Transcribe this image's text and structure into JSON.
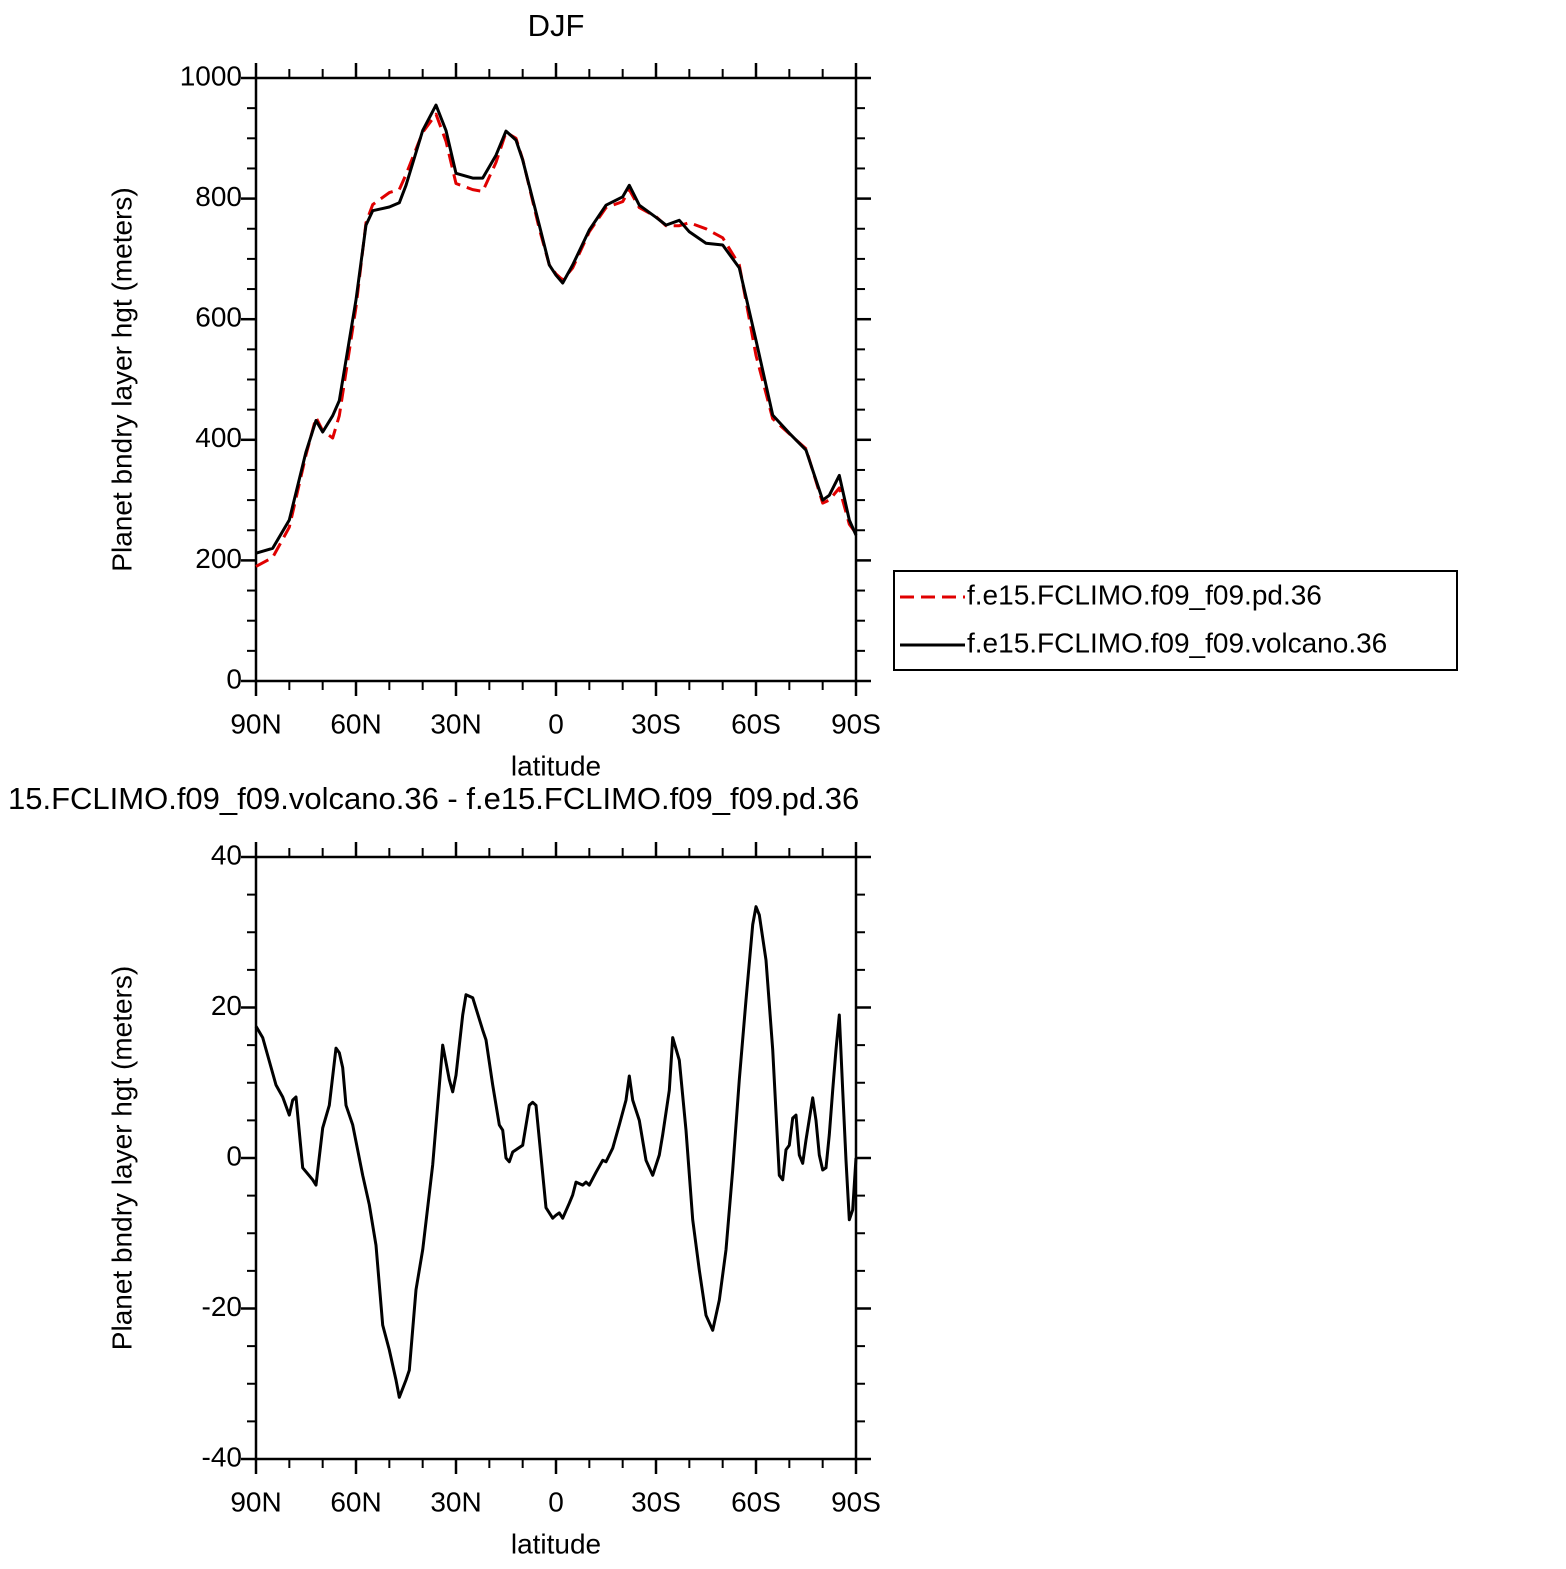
{
  "chart_data": [
    {
      "type": "line",
      "title": "DJF",
      "xlabel": "latitude",
      "ylabel": "Planet bndry layer hgt (meters)",
      "x": [
        90,
        85,
        80,
        75,
        72,
        70,
        67,
        65,
        60,
        57,
        55,
        50,
        47,
        45,
        40,
        36,
        33,
        30,
        25,
        22,
        18,
        15,
        12,
        10,
        5,
        2,
        0,
        -2,
        -5,
        -10,
        -15,
        -20,
        -22,
        -25,
        -30,
        -33,
        -37,
        -40,
        -45,
        -50,
        -55,
        -60,
        -65,
        -70,
        -75,
        -80,
        -82,
        -85,
        -88,
        -90
      ],
      "series": [
        {
          "name": "f.e15.FCLIMO.f09_f09.pd.36",
          "color": "#e00000",
          "dashed": true,
          "values": [
            190,
            205,
            255,
            375,
            437,
            415,
            403,
            440,
            620,
            760,
            790,
            810,
            815,
            840,
            910,
            940,
            895,
            825,
            815,
            812,
            860,
            910,
            900,
            865,
            750,
            690,
            675,
            665,
            685,
            745,
            785,
            795,
            815,
            785,
            770,
            755,
            755,
            760,
            750,
            735,
            690,
            540,
            435,
            410,
            385,
            295,
            300,
            320,
            260,
            245
          ]
        },
        {
          "name": "f.e15.FCLIMO.f09_f09.volcano.36",
          "color": "#000000",
          "dashed": false,
          "values": [
            212,
            220,
            267,
            380,
            432,
            413,
            440,
            465,
            632,
            756,
            780,
            786,
            793,
            822,
            913,
            955,
            913,
            842,
            834,
            834,
            872,
            912,
            897,
            864,
            756,
            690,
            673,
            660,
            690,
            748,
            789,
            803,
            822,
            789,
            769,
            756,
            764,
            745,
            726,
            723,
            685,
            565,
            441,
            411,
            383,
            300,
            308,
            341,
            267,
            242
          ]
        }
      ],
      "xlim": [
        90,
        -90
      ],
      "xticks": [
        {
          "value": 90,
          "label": "90N"
        },
        {
          "value": 60,
          "label": "60N"
        },
        {
          "value": 30,
          "label": "30N"
        },
        0,
        {
          "value": -30,
          "label": "30S"
        },
        {
          "value": -60,
          "label": "60S"
        },
        {
          "value": -90,
          "label": "90S"
        }
      ],
      "minor_xticks": [
        80,
        70,
        50,
        40,
        20,
        10,
        -10,
        -20,
        -40,
        -50,
        -70,
        -80
      ],
      "ylim": [
        0,
        1000
      ],
      "yticks": [
        0,
        200,
        400,
        600,
        800,
        1000
      ],
      "minor_yticks": [
        50,
        100,
        150,
        250,
        300,
        350,
        450,
        500,
        550,
        650,
        700,
        750,
        850,
        900,
        950
      ],
      "legend": "right"
    },
    {
      "type": "line",
      "title": "15.FCLIMO.f09_f09.volcano.36 - f.e15.FCLIMO.f09_f09.pd.36",
      "xlabel": "latitude",
      "ylabel": "Planet bndry layer hgt (meters)",
      "x": [
        90,
        88,
        84,
        82,
        80,
        79,
        78,
        76,
        73,
        72,
        70,
        68,
        66,
        65,
        64,
        63,
        61,
        58,
        56,
        54,
        52,
        50,
        48,
        47,
        45,
        44,
        42,
        40,
        37,
        34,
        32,
        31,
        30,
        28,
        27,
        25,
        22,
        21,
        19,
        17,
        16,
        15,
        14,
        13,
        10,
        8,
        7,
        6,
        3,
        1,
        0,
        -1,
        -2,
        -4,
        -5,
        -6,
        -8,
        -9,
        -10,
        -12,
        -14,
        -15,
        -17,
        -19,
        -21,
        -22,
        -23,
        -25,
        -27,
        -29,
        -31,
        -32,
        -34,
        -35,
        -37,
        -39,
        -41,
        -43,
        -45,
        -47,
        -49,
        -51,
        -53,
        -55,
        -57,
        -59,
        -60,
        -61,
        -63,
        -65,
        -67,
        -68,
        -69,
        -70,
        -71,
        -72,
        -73,
        -74,
        -75,
        -77,
        -78,
        -79,
        -80,
        -81,
        -82,
        -83,
        -84,
        -85,
        -86,
        -87,
        -88,
        -89,
        -90
      ],
      "series": [
        {
          "color": "#000000",
          "dashed": false,
          "values": [
            17.5,
            16,
            9.7,
            8.1,
            5.7,
            7.7,
            8.1,
            -1.3,
            -2.9,
            -3.6,
            4,
            7,
            14.6,
            14,
            12,
            7,
            4.4,
            -2.3,
            -6.2,
            -11.6,
            -22.2,
            -25.5,
            -29.5,
            -31.8,
            -29.5,
            -28.2,
            -17.5,
            -12.2,
            -0.9,
            15,
            10.4,
            8.8,
            11,
            19,
            21.7,
            21.3,
            17,
            15.7,
            9.7,
            4.4,
            3.7,
            0,
            -0.5,
            0.8,
            1.7,
            7,
            7.4,
            7,
            -6.6,
            -8,
            -7.6,
            -7.3,
            -8,
            -6,
            -4.9,
            -3.2,
            -3.6,
            -3.2,
            -3.6,
            -1.9,
            -0.3,
            -0.5,
            1.3,
            4.4,
            7.7,
            10.9,
            7.7,
            5,
            -0.3,
            -2.3,
            0.4,
            3.1,
            9,
            16,
            13,
            3.7,
            -8.2,
            -14.9,
            -20.9,
            -22.9,
            -18.9,
            -12.2,
            -1.6,
            10.4,
            21,
            31,
            33.4,
            32.3,
            26.3,
            14.4,
            -2.3,
            -2.9,
            1.1,
            1.7,
            5.3,
            5.7,
            0.4,
            -0.7,
            2.4,
            8,
            5,
            0.4,
            -1.6,
            -1.3,
            3.1,
            9,
            14.4,
            19,
            9,
            -0.3,
            -8.2,
            -6.9,
            0
          ]
        }
      ],
      "xlim": [
        90,
        -90
      ],
      "xticks": [
        {
          "value": 90,
          "label": "90N"
        },
        {
          "value": 60,
          "label": "60N"
        },
        {
          "value": 30,
          "label": "30N"
        },
        0,
        {
          "value": -30,
          "label": "30S"
        },
        {
          "value": -60,
          "label": "60S"
        },
        {
          "value": -90,
          "label": "90S"
        }
      ],
      "minor_xticks": [
        80,
        70,
        50,
        40,
        20,
        10,
        -10,
        -20,
        -40,
        -50,
        -70,
        -80
      ],
      "ylim": [
        -40,
        40
      ],
      "yticks": [
        -40,
        -20,
        0,
        20,
        40
      ],
      "minor_yticks": [
        -35,
        -30,
        -25,
        -15,
        -10,
        -5,
        5,
        10,
        15,
        25,
        30,
        35
      ]
    }
  ]
}
